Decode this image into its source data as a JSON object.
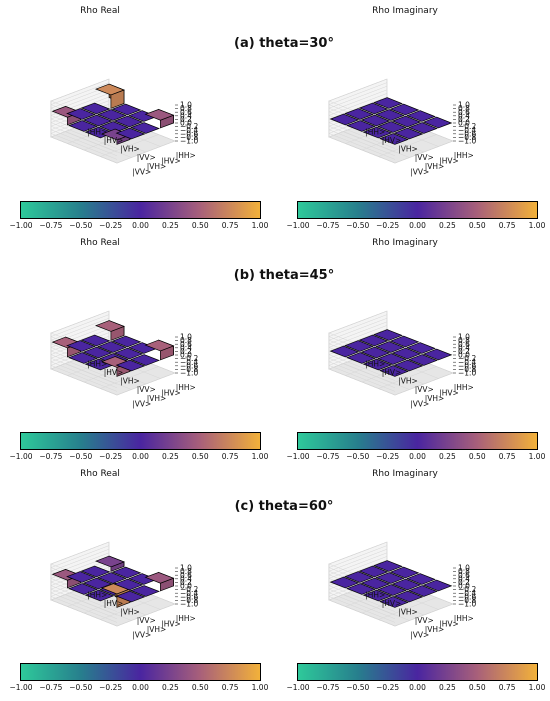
{
  "figure": {
    "panel_title_real": "Rho Real",
    "panel_title_imag": "Rho Imaginary",
    "basis_labels": [
      "|HH>",
      "|HV>",
      "|VH>",
      "|VV>"
    ],
    "z_ticks": [
      "1.0",
      "0.8",
      "0.6",
      "0.4",
      "0.2",
      "0.0",
      "−0.2",
      "−0.4",
      "−0.6",
      "−0.8",
      "−1.0"
    ],
    "colorbar_ticks": [
      "−1.00",
      "−0.75",
      "−0.50",
      "−0.25",
      "0.00",
      "0.25",
      "0.50",
      "0.75",
      "1.00"
    ],
    "colors": {
      "negative": "#2ec99a",
      "zero": "#4a25a0",
      "positive": "#f2b13a",
      "edge": "#000000"
    }
  },
  "chart_data": [
    {
      "type": "bar3d",
      "title": "(a) theta=30°",
      "panel": "Rho Real",
      "x": [
        "|HH>",
        "|HV>",
        "|VH>",
        "|VV>"
      ],
      "y": [
        "|HH>",
        "|HV>",
        "|VH>",
        "|VV>"
      ],
      "zlim": [
        -1,
        1
      ],
      "values": [
        [
          0.75,
          0,
          0,
          0.43
        ],
        [
          0,
          0,
          0,
          0
        ],
        [
          0,
          0,
          0,
          0
        ],
        [
          0.43,
          0,
          0,
          0.25
        ]
      ]
    },
    {
      "type": "bar3d",
      "title": "",
      "panel": "Rho Imaginary",
      "x": [
        "|HH>",
        "|HV>",
        "|VH>",
        "|VV>"
      ],
      "y": [
        "|HH>",
        "|HV>",
        "|VH>",
        "|VV>"
      ],
      "zlim": [
        -1,
        1
      ],
      "values": [
        [
          0,
          0,
          0,
          0
        ],
        [
          0,
          0,
          0,
          0
        ],
        [
          0,
          0,
          0,
          0
        ],
        [
          0,
          0,
          0,
          0
        ]
      ]
    },
    {
      "type": "bar3d",
      "title": "(b) theta=45°",
      "panel": "Rho Real",
      "x": [
        "|HH>",
        "|HV>",
        "|VH>",
        "|VV>"
      ],
      "y": [
        "|HH>",
        "|HV>",
        "|VH>",
        "|VV>"
      ],
      "zlim": [
        -1,
        1
      ],
      "values": [
        [
          0.5,
          0,
          0,
          0.5
        ],
        [
          0,
          0,
          0,
          0
        ],
        [
          0,
          0,
          0,
          0
        ],
        [
          0.5,
          0,
          0,
          0.5
        ]
      ]
    },
    {
      "type": "bar3d",
      "title": "",
      "panel": "Rho Imaginary",
      "x": [
        "|HH>",
        "|HV>",
        "|VH>",
        "|VV>"
      ],
      "y": [
        "|HH>",
        "|HV>",
        "|VH>",
        "|VV>"
      ],
      "zlim": [
        -1,
        1
      ],
      "values": [
        [
          0,
          0,
          0,
          0
        ],
        [
          0,
          0,
          0,
          0
        ],
        [
          0,
          0,
          0,
          0
        ],
        [
          0,
          0,
          0,
          0
        ]
      ]
    },
    {
      "type": "bar3d",
      "title": "(c) theta=60°",
      "panel": "Rho Real",
      "x": [
        "|HH>",
        "|HV>",
        "|VH>",
        "|VV>"
      ],
      "y": [
        "|HH>",
        "|HV>",
        "|VH>",
        "|VV>"
      ],
      "zlim": [
        -1,
        1
      ],
      "values": [
        [
          0.25,
          0,
          0,
          0.43
        ],
        [
          0,
          0,
          0,
          0
        ],
        [
          0,
          0,
          0,
          0
        ],
        [
          0.43,
          0,
          0,
          0.75
        ]
      ]
    },
    {
      "type": "bar3d",
      "title": "",
      "panel": "Rho Imaginary",
      "x": [
        "|HH>",
        "|HV>",
        "|VH>",
        "|VV>"
      ],
      "y": [
        "|HH>",
        "|HV>",
        "|VH>",
        "|VV>"
      ],
      "zlim": [
        -1,
        1
      ],
      "values": [
        [
          0,
          0,
          0,
          0
        ],
        [
          0,
          0,
          0,
          0
        ],
        [
          0,
          0,
          0,
          0
        ],
        [
          0,
          0,
          0,
          0
        ]
      ]
    }
  ]
}
